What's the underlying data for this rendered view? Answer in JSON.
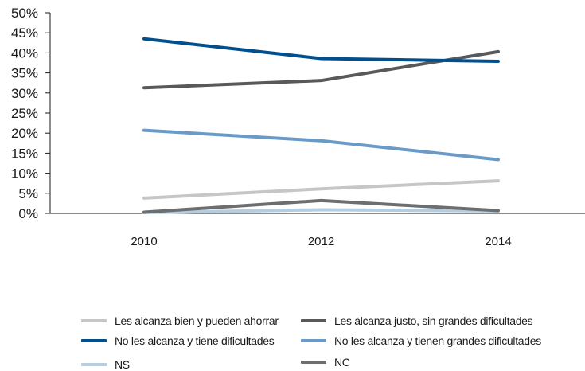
{
  "chart_data": {
    "type": "line",
    "x": [
      "2010",
      "2012",
      "2014"
    ],
    "ylim": [
      0,
      50
    ],
    "y_ticks": [
      "0%",
      "5%",
      "10%",
      "15%",
      "20%",
      "25%",
      "30%",
      "35%",
      "40%",
      "45%",
      "50%"
    ],
    "grid": false,
    "legend_position": "bottom",
    "series": [
      {
        "name": "Les alcanza bien y pueden ahorrar",
        "color": "#c4c6c8",
        "values": [
          3.8,
          6.1,
          8.1
        ]
      },
      {
        "name": "Les alcanza justo, sin grandes dificultades",
        "color": "#58595b",
        "values": [
          31.3,
          33.1,
          40.3
        ]
      },
      {
        "name": "No les alcanza y tiene dificultades",
        "color": "#00508f",
        "values": [
          43.5,
          38.6,
          37.9
        ]
      },
      {
        "name": "No les alcanza y tienen grandes dificultades",
        "color": "#6a9ac8",
        "values": [
          20.7,
          18.1,
          13.4
        ]
      },
      {
        "name": "NS",
        "color": "#b5cde0",
        "values": [
          0.2,
          0.9,
          0.6
        ]
      },
      {
        "name": "NC",
        "color": "#6d6e70",
        "values": [
          0.3,
          3.2,
          0.7
        ]
      }
    ]
  }
}
